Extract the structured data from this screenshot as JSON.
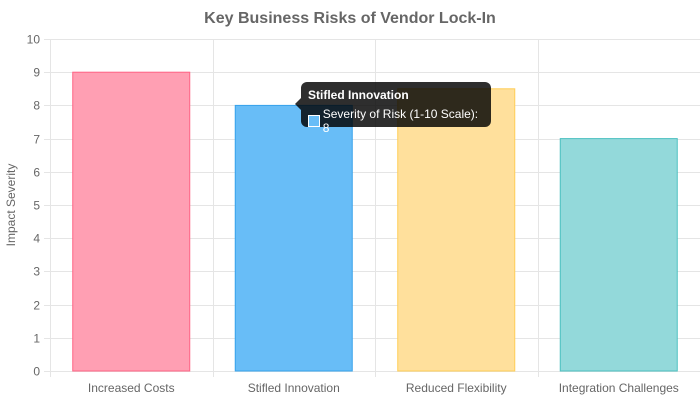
{
  "chart_data": {
    "type": "bar",
    "title": "Key Business Risks of Vendor Lock-In",
    "ylabel": "Impact Severity",
    "xlabel": "",
    "categories": [
      "Increased Costs",
      "Stifled Innovation",
      "Reduced Flexibility",
      "Integration Challenges"
    ],
    "series": [
      {
        "name": "Severity of Risk (1-10 Scale)",
        "values": [
          9,
          8,
          8.5,
          7
        ]
      }
    ],
    "ylim": [
      0,
      10
    ],
    "yticks": [
      "0",
      "1",
      "2",
      "3",
      "4",
      "5",
      "6",
      "7",
      "8",
      "9",
      "10"
    ],
    "grid": true,
    "legend": "none",
    "colors": {
      "fills": [
        "#ff9fb3",
        "#68bdf7",
        "#ffe09c",
        "#93d9da"
      ],
      "borders": [
        "#ff6384",
        "#36a2eb",
        "#ffce56",
        "#4bc0c0"
      ]
    }
  },
  "tooltip": {
    "title": "Stifled Innovation",
    "label": "Severity of Risk (1-10 Scale): 8",
    "swatch_color": "#68bdf7"
  }
}
